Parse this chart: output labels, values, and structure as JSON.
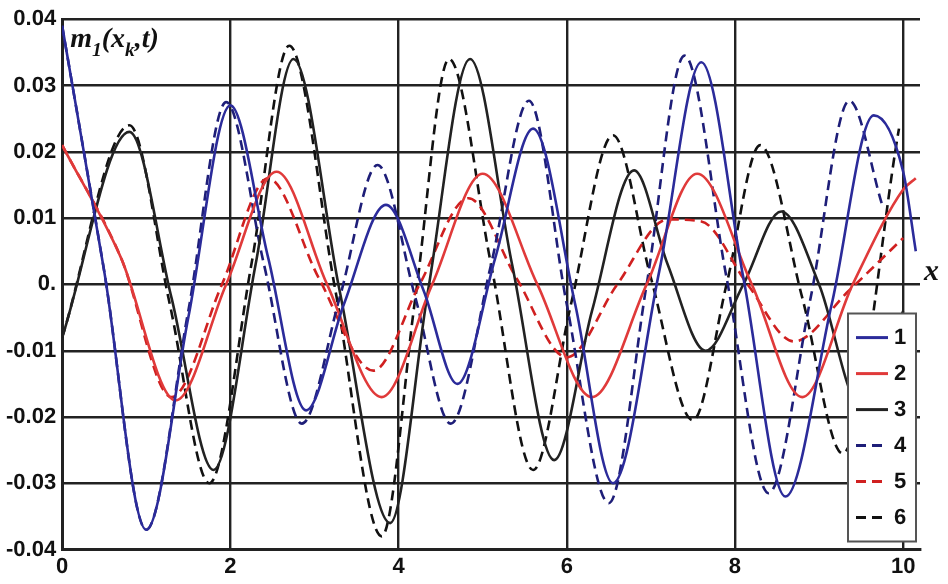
{
  "chart_data": {
    "type": "line",
    "ylabel": "m$_{1}$(x$_{k}$,t)",
    "xlabel": "x",
    "xlim": [
      0,
      10.2
    ],
    "xticks": [
      0,
      2,
      4,
      6,
      8,
      10
    ],
    "ylim": [
      -0.04,
      0.04
    ],
    "yticks": [
      -0.04,
      -0.03,
      -0.02,
      -0.01,
      {
        "value": 0,
        "label": "0."
      },
      0.01,
      0.02,
      0.03,
      0.04
    ],
    "grid": true,
    "legend": "bottom right",
    "marker": "none",
    "series": [
      {
        "name": "1",
        "color": "#2b2b9a",
        "line_style": "solid",
        "x": [
          0,
          0.5,
          1.0,
          1.5,
          2.0,
          2.45,
          2.9,
          3.35,
          3.85,
          4.3,
          4.7,
          5.15,
          5.6,
          6.1,
          6.55,
          7.1,
          7.6,
          8.1,
          8.6,
          9.15,
          9.65,
          10.0,
          10.15
        ],
        "values": [
          0.039,
          0.002,
          -0.037,
          -0.005,
          0.027,
          0.004,
          -0.019,
          -0.003,
          0.012,
          -0.001,
          -0.015,
          0.004,
          0.0235,
          -0.003,
          -0.03,
          0.002,
          0.0335,
          0.001,
          -0.032,
          -0.003,
          0.0255,
          0.017,
          0.005
        ]
      },
      {
        "name": "2",
        "color": "#e03a3a",
        "line_style": "solid",
        "x": [
          0,
          0.7,
          1.35,
          1.95,
          2.55,
          3.15,
          3.8,
          4.4,
          5.0,
          5.65,
          6.3,
          6.95,
          7.55,
          8.2,
          8.8,
          9.4,
          10.0,
          10.15
        ],
        "values": [
          0.021,
          0.004,
          -0.0175,
          0,
          0.017,
          0,
          -0.017,
          0,
          0.0167,
          0,
          -0.017,
          0,
          0.0167,
          0,
          -0.017,
          0,
          0.0143,
          0.016
        ]
      },
      {
        "name": "3",
        "color": "#222222",
        "line_style": "solid",
        "x": [
          0,
          0.8,
          1.3,
          1.8,
          2.3,
          2.75,
          3.3,
          3.9,
          4.35,
          4.85,
          5.35,
          5.85,
          6.3,
          6.8,
          7.2,
          7.65,
          8.1,
          8.55,
          9.0,
          9.5,
          10.0
        ],
        "values": [
          -0.008,
          0.023,
          -0.002,
          -0.028,
          0.003,
          0.034,
          -0.001,
          -0.036,
          -0.001,
          0.034,
          0.003,
          -0.0265,
          -0.004,
          0.0172,
          0.003,
          -0.01,
          0.0,
          0.011,
          0.0,
          -0.0185,
          -0.004
        ]
      },
      {
        "name": "4",
        "color": "#1e1e78",
        "line_style": "dashed",
        "x": [
          0,
          0.5,
          1.0,
          1.5,
          1.95,
          2.4,
          2.85,
          3.3,
          3.75,
          4.2,
          4.62,
          5.1,
          5.55,
          6.0,
          6.5,
          6.95,
          7.4,
          7.9,
          8.4,
          8.9,
          9.36,
          9.75
        ],
        "values": [
          0.039,
          0.002,
          -0.037,
          -0.004,
          0.0275,
          0.003,
          -0.021,
          -0.002,
          0.018,
          -0.002,
          -0.021,
          0.003,
          0.0277,
          -0.003,
          -0.033,
          0.0,
          0.0345,
          0.001,
          -0.0315,
          -0.002,
          0.0277,
          0.012
        ]
      },
      {
        "name": "5",
        "color": "#d02020",
        "line_style": "dashed",
        "x": [
          0,
          0.7,
          1.3,
          1.9,
          2.45,
          3.05,
          3.7,
          4.25,
          4.83,
          5.4,
          6.0,
          6.6,
          7.2,
          7.6,
          8.15,
          8.7,
          9.35,
          10.0
        ],
        "values": [
          0.021,
          0.004,
          -0.017,
          0,
          0.016,
          0.001,
          -0.013,
          0,
          0.013,
          0.001,
          -0.011,
          0,
          0.0098,
          0.0095,
          0,
          -0.0086,
          -0.001,
          0.007
        ]
      },
      {
        "name": "6",
        "color": "#111111",
        "line_style": "dashed",
        "x": [
          0,
          0.8,
          1.28,
          1.75,
          2.25,
          2.7,
          3.25,
          3.8,
          4.2,
          4.6,
          5.1,
          5.6,
          6.05,
          6.55,
          7.0,
          7.5,
          7.9,
          8.3,
          8.8,
          9.28,
          9.95
        ],
        "values": [
          -0.008,
          0.024,
          -0.003,
          -0.03,
          0.003,
          0.036,
          -0.001,
          -0.038,
          -0.002,
          0.034,
          0.003,
          -0.028,
          -0.003,
          0.0225,
          0.001,
          -0.0205,
          0.0,
          0.021,
          -0.002,
          -0.0255,
          0.0235
        ]
      }
    ]
  }
}
